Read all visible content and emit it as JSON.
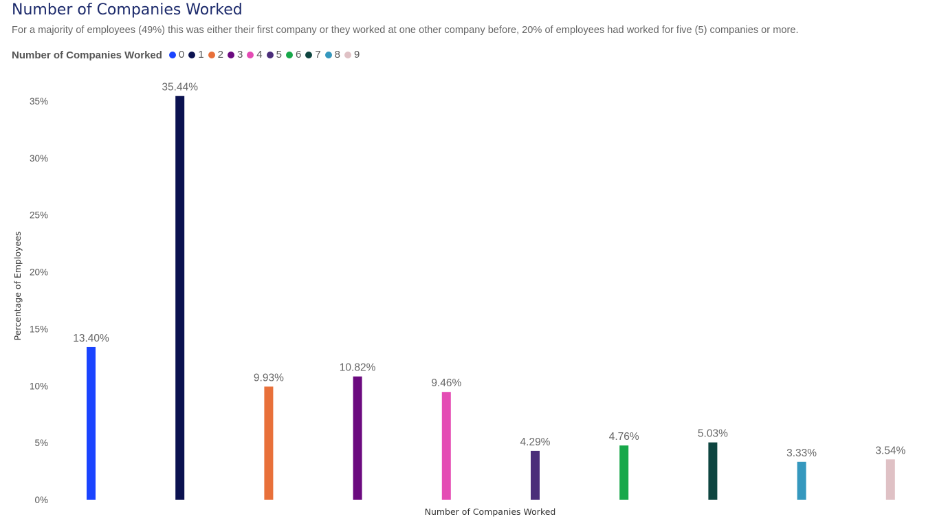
{
  "chart_data": {
    "type": "bar",
    "title": "Number of Companies Worked",
    "subtitle": "For a majority of employees (49%) this was either their first company or they worked at one other company before, 20% of employees had worked for five (5) companies or more.",
    "legend_title": "Number of Companies Worked",
    "legend_position": "top-left",
    "xlabel": "Number of Companies Worked",
    "ylabel": "Percentage of Employees",
    "ylim": [
      0,
      35
    ],
    "y_ticks": [
      0,
      5,
      10,
      15,
      20,
      25,
      30,
      35
    ],
    "y_tick_labels": [
      "0%",
      "5%",
      "10%",
      "15%",
      "20%",
      "25%",
      "30%",
      "35%"
    ],
    "grid": false,
    "categories": [
      "0",
      "1",
      "2",
      "3",
      "4",
      "5",
      "6",
      "7",
      "8",
      "9"
    ],
    "values": [
      13.4,
      35.44,
      9.93,
      10.82,
      9.46,
      4.29,
      4.76,
      5.03,
      3.33,
      3.54
    ],
    "value_labels": [
      "13.40%",
      "35.44%",
      "9.93%",
      "10.82%",
      "9.46%",
      "4.29%",
      "4.76%",
      "5.03%",
      "3.33%",
      "3.54%"
    ],
    "colors": [
      "#1a44ff",
      "#0b1250",
      "#e8703a",
      "#6b0a7f",
      "#e44cb4",
      "#4b2e7a",
      "#18a84a",
      "#0e4540",
      "#3598be",
      "#dfc1c5"
    ]
  }
}
